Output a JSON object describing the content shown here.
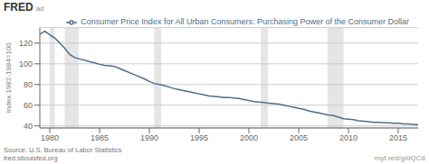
{
  "chart_data": {
    "type": "line",
    "ylabel": "Index 1982-1984=100",
    "x": [
      1979.0,
      1979.5,
      1980.0,
      1980.5,
      1981.0,
      1981.5,
      1982.0,
      1982.5,
      1983.0,
      1983.5,
      1984.0,
      1984.5,
      1985.0,
      1985.5,
      1986.0,
      1986.5,
      1987.0,
      1987.5,
      1988.0,
      1988.5,
      1989.0,
      1989.5,
      1990.0,
      1990.5,
      1991.0,
      1991.5,
      1992.0,
      1992.5,
      1993.0,
      1993.5,
      1994.0,
      1994.5,
      1995.0,
      1995.5,
      1996.0,
      1996.5,
      1997.0,
      1997.5,
      1998.0,
      1998.5,
      1999.0,
      1999.5,
      2000.0,
      2000.5,
      2001.0,
      2001.5,
      2002.0,
      2002.5,
      2003.0,
      2003.5,
      2004.0,
      2004.5,
      2005.0,
      2005.5,
      2006.0,
      2006.5,
      2007.0,
      2007.5,
      2008.0,
      2008.5,
      2009.0,
      2009.5,
      2010.0,
      2010.5,
      2011.0,
      2011.5,
      2012.0,
      2012.5,
      2013.0,
      2013.5,
      2014.0,
      2014.5,
      2015.0,
      2015.5,
      2016.0,
      2016.5,
      2017.0
    ],
    "series": [
      {
        "name": "Consumer Price Index for All Urban Consumers: Purchasing Power of the Consumer Dollar",
        "color": "#4C6E8C",
        "values": [
          128.5,
          131.5,
          128.0,
          125.0,
          120.0,
          115.0,
          109.0,
          106.0,
          104.5,
          103.5,
          102.0,
          101.0,
          99.5,
          98.5,
          98.0,
          97.5,
          95.5,
          93.5,
          91.5,
          89.5,
          87.5,
          85.5,
          83.0,
          81.0,
          80.0,
          79.0,
          77.5,
          76.0,
          75.0,
          74.0,
          73.0,
          72.0,
          71.0,
          70.0,
          69.0,
          68.5,
          68.0,
          67.5,
          67.5,
          67.0,
          66.5,
          65.5,
          64.5,
          63.5,
          63.0,
          62.5,
          62.0,
          61.5,
          61.0,
          60.0,
          59.0,
          58.0,
          57.0,
          56.0,
          54.5,
          53.5,
          52.5,
          51.5,
          50.5,
          50.0,
          48.5,
          47.0,
          46.5,
          46.0,
          45.0,
          44.5,
          44.0,
          43.5,
          43.5,
          43.0,
          43.0,
          42.5,
          42.5,
          42.0,
          42.0,
          41.5,
          41.0
        ]
      }
    ],
    "xlim": [
      1979,
      2017
    ],
    "ylim": [
      38,
      135
    ],
    "xticks": [
      1980,
      1985,
      1990,
      1995,
      2000,
      2005,
      2010,
      2015
    ],
    "yticks": [
      40,
      60,
      80,
      100,
      120
    ],
    "grid": true,
    "legend": "upper right",
    "recessions": [
      [
        1980.0,
        1980.5
      ],
      [
        1981.5,
        1982.9
      ],
      [
        1990.5,
        1991.2
      ],
      [
        2001.2,
        2001.9
      ],
      [
        2007.9,
        2009.5
      ]
    ],
    "annotations": [
      "FRED",
      "ad",
      "Source: U.S. Bureau of Labor Statistics\nfred.stlouisfed.org",
      "myf.red/g/dQC8"
    ]
  }
}
